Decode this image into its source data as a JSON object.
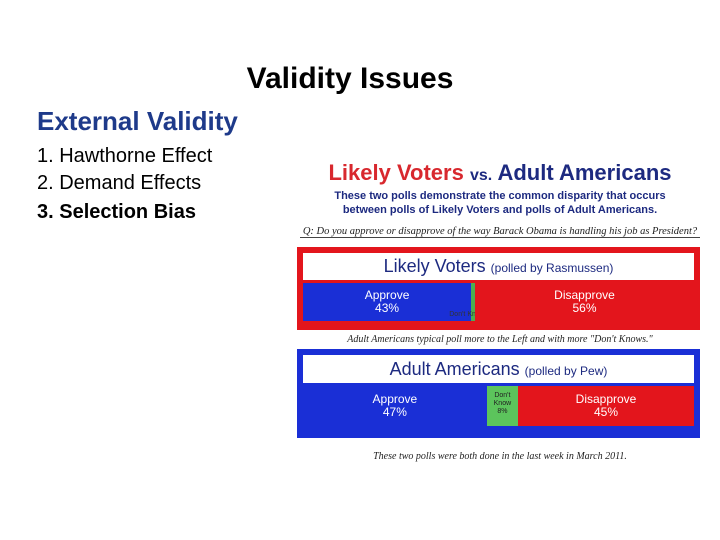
{
  "title": "Validity Issues",
  "subtitle": "External Validity",
  "items": [
    "1. Hawthorne Effect",
    "2. Demand Effects",
    "3. Selection Bias"
  ],
  "figure": {
    "heading": [
      "Likely Voters",
      "vs.",
      "Adult Americans"
    ],
    "description": [
      "These two polls demonstrate the common disparity that occurs",
      "between polls of Likely Voters and polls of Adult Americans."
    ],
    "question": "Q: Do you approve or disapprove of the way Barack Obama is handling his job as President?",
    "polls": [
      {
        "name": "Likely Voters",
        "source": "(polled by Rasmussen)",
        "color": "#e3151c",
        "segments": [
          {
            "label": "Approve",
            "value": 43,
            "value_label": "43%",
            "color": "#1a2fd6"
          },
          {
            "label": "Don't Know",
            "value": 1,
            "value_label": "1%",
            "color": "#4caf50"
          },
          {
            "label": "Disapprove",
            "value": 56,
            "value_label": "56%",
            "color": "#e3151c"
          }
        ]
      },
      {
        "name": "Adult Americans",
        "source": "(polled by Pew)",
        "color": "#1a2fd6",
        "segments": [
          {
            "label": "Approve",
            "value": 47,
            "value_label": "47%",
            "color": "#1a2fd6"
          },
          {
            "label": "Don't Know",
            "value": 8,
            "value_label": "8%",
            "color": "#5cc45c"
          },
          {
            "label": "Disapprove",
            "value": 45,
            "value_label": "45%",
            "color": "#e3151c"
          }
        ]
      }
    ],
    "note": "Adult Americans typical poll more to the Left and with more \"Don't Knows.\"",
    "footer": "These two polls were both done in the last week in March 2011."
  }
}
